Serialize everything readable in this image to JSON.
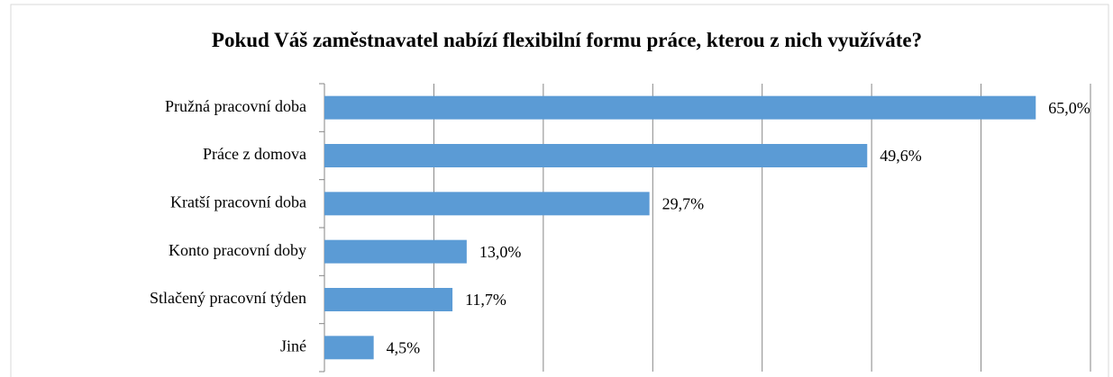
{
  "chart_data": {
    "type": "hbar",
    "title": "Pokud Váš zaměstnavatel nabízí flexibilní formu práce, kterou z nich využíváte?",
    "categories": [
      "Pružná pracovní doba",
      "Práce z domova",
      "Kratší pracovní doba",
      "Konto pracovní doby",
      "Stlačený pracovní týden",
      "Jiné"
    ],
    "values": [
      65.0,
      49.6,
      29.7,
      13.0,
      11.7,
      4.5
    ],
    "value_labels": [
      "65,0%",
      "49,6%",
      "29,7%",
      "13,0%",
      "11,7%",
      "4,5%"
    ],
    "color": "#5b9bd5",
    "xlim": [
      0,
      70
    ],
    "xticks": [
      0,
      10,
      20,
      30,
      40,
      50,
      60,
      70
    ],
    "grid": true
  }
}
